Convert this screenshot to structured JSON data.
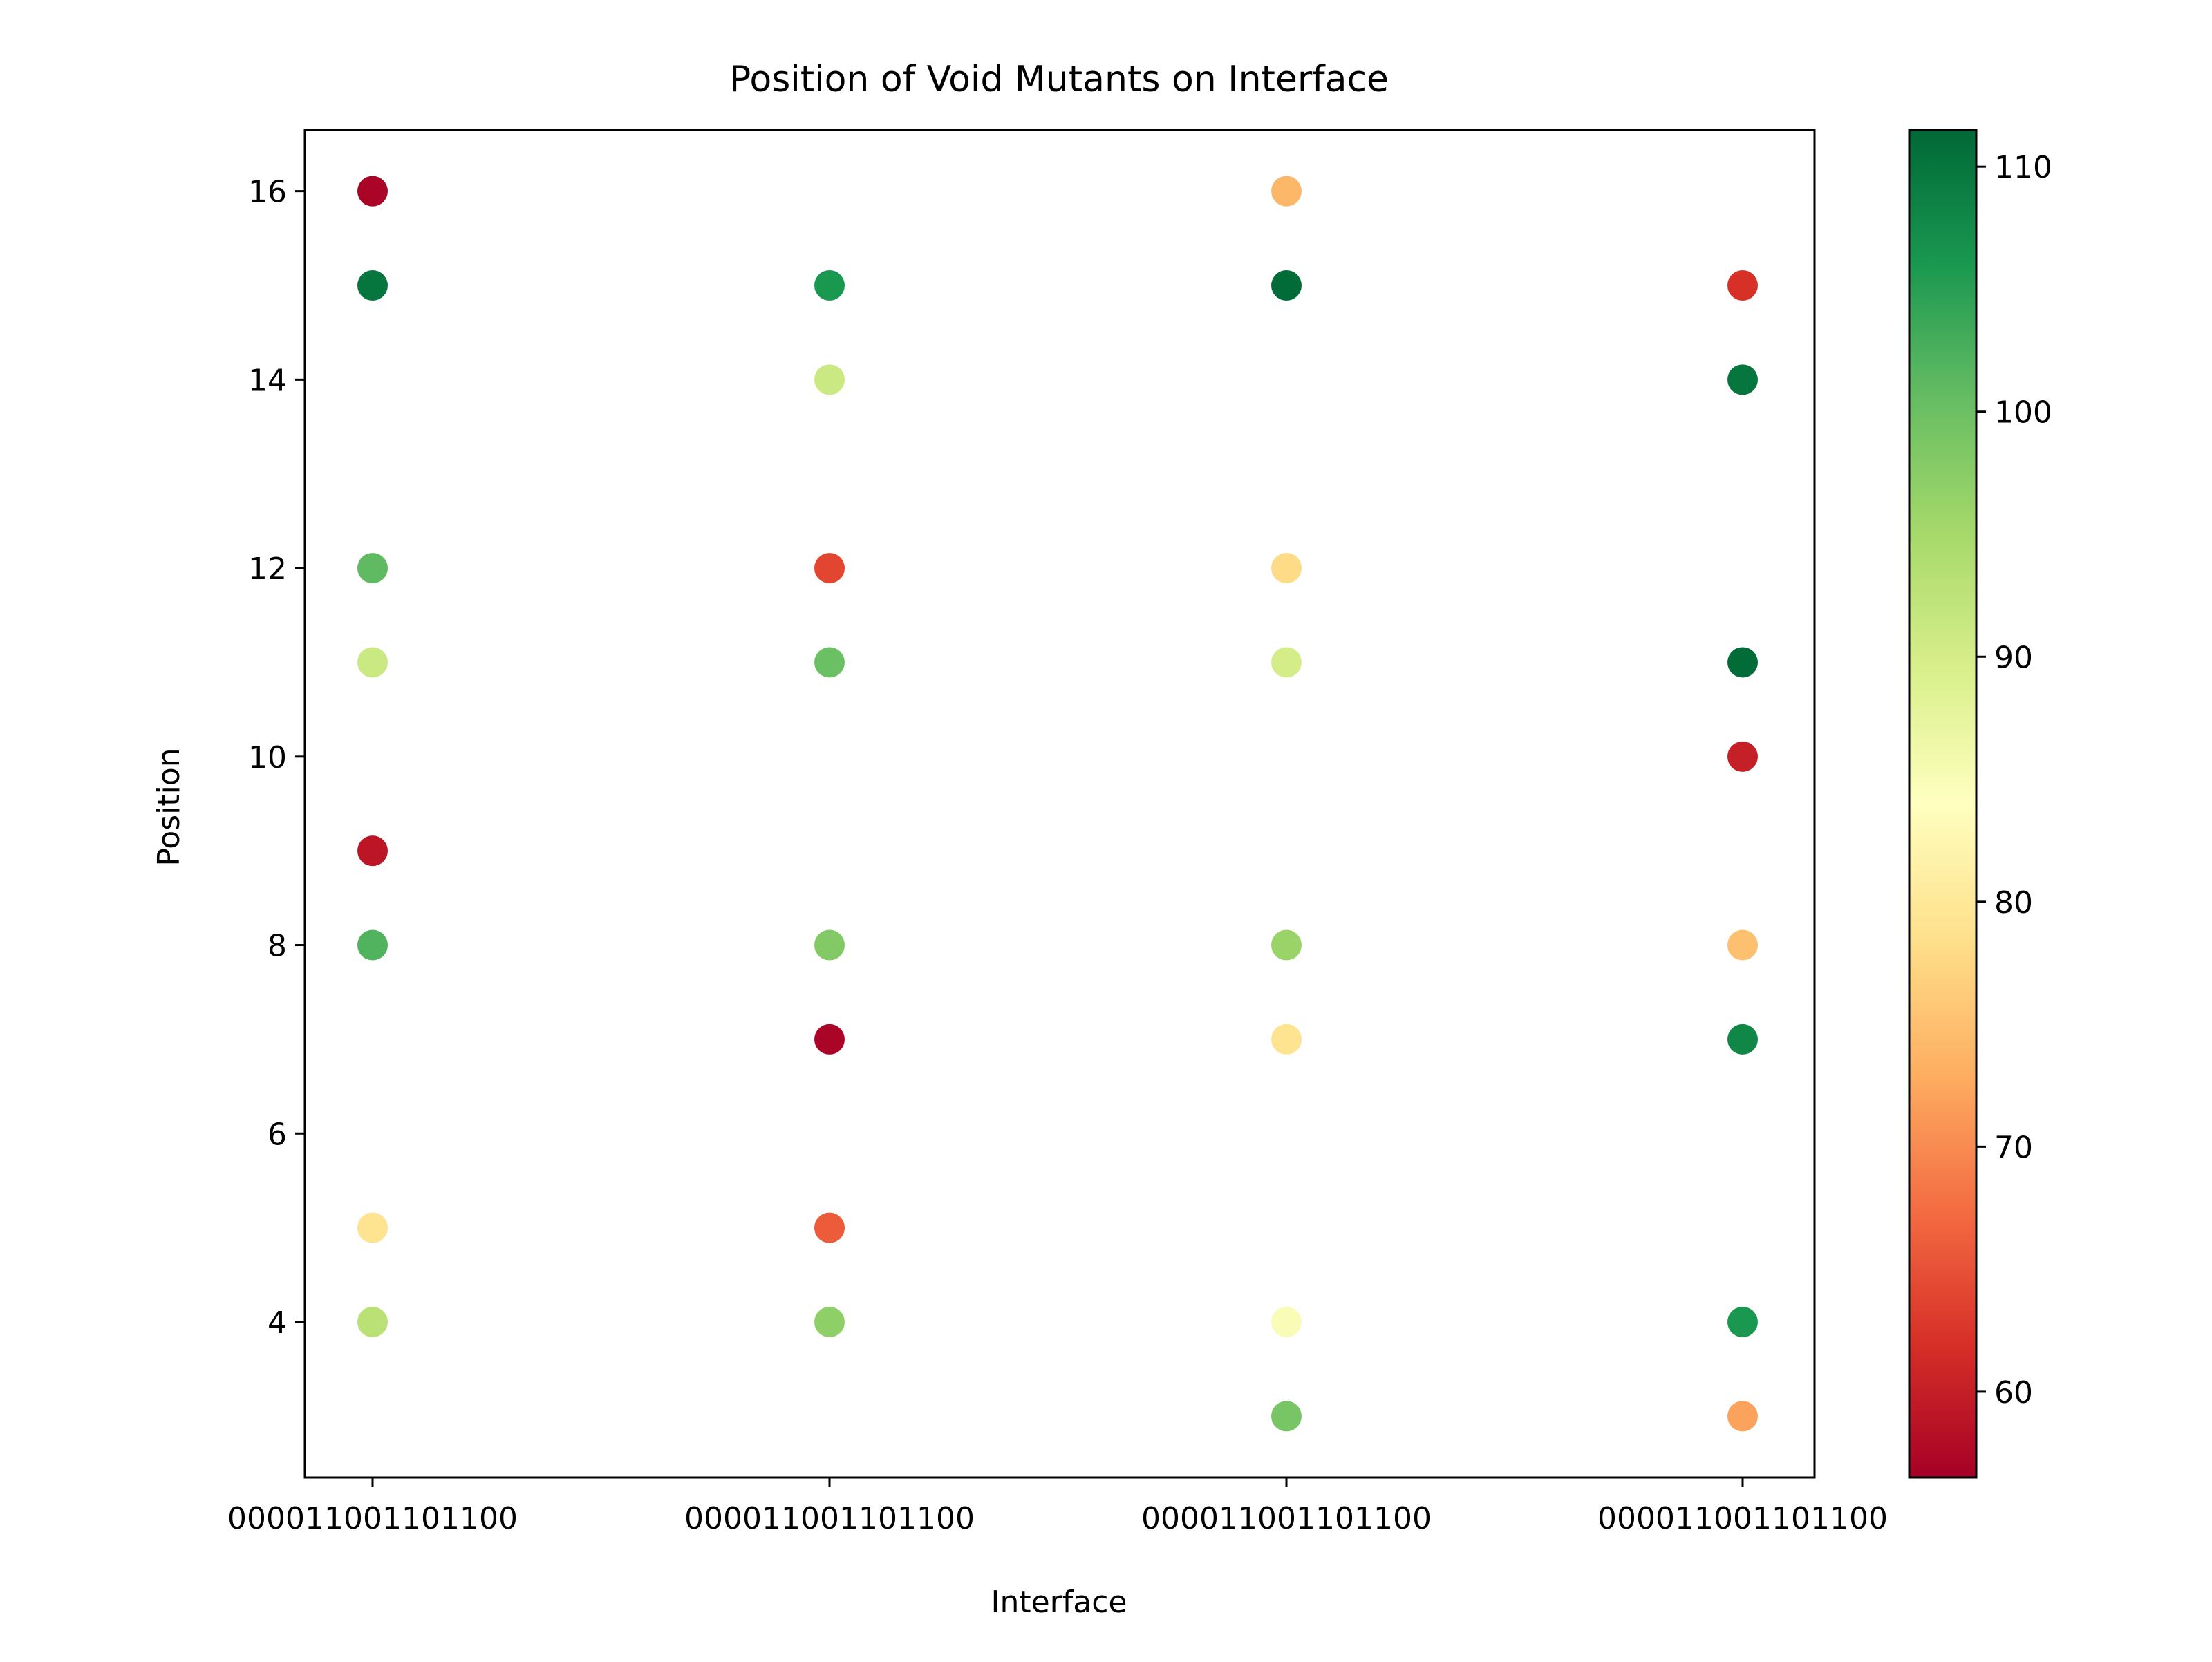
{
  "chart_data": {
    "type": "scatter",
    "title": "Position of Void Mutants on Interface",
    "xlabel": "Interface",
    "ylabel": "Position",
    "categories": [
      "000011001101100",
      "000011001101100",
      "000011001101100",
      "000011001101100"
    ],
    "ylim": [
      2.35,
      16.65
    ],
    "yticks": [
      4,
      6,
      8,
      10,
      12,
      14,
      16
    ],
    "grid": false,
    "colormap": {
      "name": "RdYlGn",
      "range": [
        56.5,
        111.5
      ],
      "ticks": [
        60,
        70,
        80,
        90,
        100,
        110
      ],
      "stops": [
        {
          "v": 56.5,
          "c": "#a50026"
        },
        {
          "v": 62,
          "c": "#d73027"
        },
        {
          "v": 67.5,
          "c": "#f46d43"
        },
        {
          "v": 73,
          "c": "#fdae61"
        },
        {
          "v": 78.5,
          "c": "#fee08b"
        },
        {
          "v": 84,
          "c": "#ffffbf"
        },
        {
          "v": 89.5,
          "c": "#d9ef8b"
        },
        {
          "v": 95,
          "c": "#a6d96a"
        },
        {
          "v": 100.5,
          "c": "#66bd63"
        },
        {
          "v": 106,
          "c": "#1a9850"
        },
        {
          "v": 111.5,
          "c": "#006837"
        }
      ]
    },
    "points": [
      {
        "x": 0,
        "y": 16,
        "value": 57
      },
      {
        "x": 0,
        "y": 15,
        "value": 110
      },
      {
        "x": 0,
        "y": 12,
        "value": 101
      },
      {
        "x": 0,
        "y": 11,
        "value": 91
      },
      {
        "x": 0,
        "y": 9,
        "value": 59
      },
      {
        "x": 0,
        "y": 8,
        "value": 102
      },
      {
        "x": 0,
        "y": 5,
        "value": 79
      },
      {
        "x": 0,
        "y": 4,
        "value": 93
      },
      {
        "x": 1,
        "y": 15,
        "value": 106
      },
      {
        "x": 1,
        "y": 14,
        "value": 91
      },
      {
        "x": 1,
        "y": 12,
        "value": 64
      },
      {
        "x": 1,
        "y": 11,
        "value": 100
      },
      {
        "x": 1,
        "y": 8,
        "value": 98
      },
      {
        "x": 1,
        "y": 7,
        "value": 57
      },
      {
        "x": 1,
        "y": 5,
        "value": 66
      },
      {
        "x": 1,
        "y": 4,
        "value": 97
      },
      {
        "x": 2,
        "y": 16,
        "value": 74
      },
      {
        "x": 2,
        "y": 15,
        "value": 111
      },
      {
        "x": 2,
        "y": 12,
        "value": 78
      },
      {
        "x": 2,
        "y": 11,
        "value": 90
      },
      {
        "x": 2,
        "y": 8,
        "value": 96
      },
      {
        "x": 2,
        "y": 7,
        "value": 79
      },
      {
        "x": 2,
        "y": 4,
        "value": 85
      },
      {
        "x": 2,
        "y": 3,
        "value": 99
      },
      {
        "x": 3,
        "y": 15,
        "value": 62
      },
      {
        "x": 3,
        "y": 14,
        "value": 110
      },
      {
        "x": 3,
        "y": 11,
        "value": 111
      },
      {
        "x": 3,
        "y": 10,
        "value": 60
      },
      {
        "x": 3,
        "y": 8,
        "value": 75
      },
      {
        "x": 3,
        "y": 7,
        "value": 108
      },
      {
        "x": 3,
        "y": 4,
        "value": 106
      },
      {
        "x": 3,
        "y": 3,
        "value": 72
      }
    ]
  }
}
